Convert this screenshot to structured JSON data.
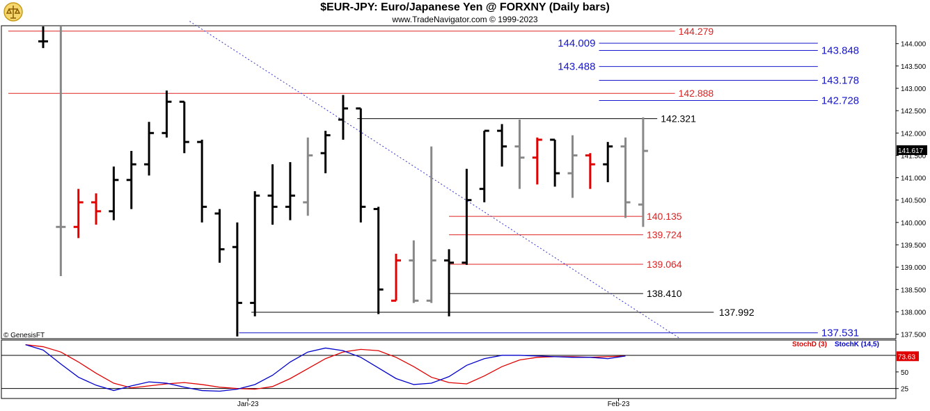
{
  "title": "$EUR-JPY:  Euro/Japanese Yen @ FORXNY  (Daily bars)",
  "subtitle": "www.TradeNavigator.com © 1999-2023",
  "credit": "© GenesisFT",
  "colors": {
    "up": "#000000",
    "down": "#e00000",
    "neutral": "#888888",
    "stochD": "#e00000",
    "stochK": "#0000cc",
    "trend": "#3333cc"
  },
  "chart_data": [
    {
      "type": "bar",
      "subtype": "ohlc",
      "ylim": [
        137.4,
        144.4
      ],
      "yticks": [
        137.5,
        138.0,
        138.5,
        139.0,
        139.5,
        140.0,
        140.5,
        141.0,
        141.5,
        142.0,
        142.5,
        143.0,
        143.5,
        144.0
      ],
      "ytick_labels": [
        "137.500",
        "138.000",
        "138.500",
        "139.000",
        "139.500",
        "140.000",
        "140.500",
        "141.000",
        "141.500",
        "142.000",
        "142.500",
        "143.000",
        "143.500",
        "144.000"
      ],
      "x_labels": [
        {
          "bar": 12,
          "label": "Jan-23"
        },
        {
          "bar": 33,
          "label": "Feb-23"
        }
      ],
      "last_price": "141.617",
      "bars": [
        {
          "o": 144.05,
          "h": 144.5,
          "l": 143.9,
          "c": 144.05,
          "color": "up"
        },
        {
          "o": 139.9,
          "h": 144.5,
          "l": 138.8,
          "c": 139.9,
          "color": "neutral"
        },
        {
          "o": 139.9,
          "h": 140.75,
          "l": 139.65,
          "c": 140.45,
          "color": "down"
        },
        {
          "o": 140.45,
          "h": 140.65,
          "l": 139.95,
          "c": 140.25,
          "color": "down"
        },
        {
          "o": 140.25,
          "h": 141.25,
          "l": 140.05,
          "c": 140.95,
          "color": "up"
        },
        {
          "o": 140.95,
          "h": 141.6,
          "l": 140.3,
          "c": 141.3,
          "color": "up"
        },
        {
          "o": 141.3,
          "h": 142.25,
          "l": 141.05,
          "c": 142.0,
          "color": "up"
        },
        {
          "o": 142.0,
          "h": 142.95,
          "l": 141.9,
          "c": 142.7,
          "color": "up"
        },
        {
          "o": 142.7,
          "h": 142.7,
          "l": 141.55,
          "c": 141.8,
          "color": "up"
        },
        {
          "o": 141.8,
          "h": 141.85,
          "l": 140.0,
          "c": 140.35,
          "color": "up"
        },
        {
          "o": 140.2,
          "h": 140.3,
          "l": 139.1,
          "c": 139.4,
          "color": "up"
        },
        {
          "o": 139.45,
          "h": 140.0,
          "l": 137.45,
          "c": 138.2,
          "color": "up"
        },
        {
          "o": 138.2,
          "h": 140.7,
          "l": 137.9,
          "c": 140.6,
          "color": "up"
        },
        {
          "o": 140.6,
          "h": 141.3,
          "l": 139.95,
          "c": 140.35,
          "color": "up"
        },
        {
          "o": 140.35,
          "h": 141.35,
          "l": 140.05,
          "c": 140.6,
          "color": "up"
        },
        {
          "o": 140.45,
          "h": 141.9,
          "l": 140.15,
          "c": 141.5,
          "color": "neutral"
        },
        {
          "o": 141.55,
          "h": 142.05,
          "l": 141.1,
          "c": 141.95,
          "color": "up"
        },
        {
          "o": 142.3,
          "h": 142.85,
          "l": 141.85,
          "c": 142.55,
          "color": "up"
        },
        {
          "o": 142.55,
          "h": 142.55,
          "l": 140.0,
          "c": 140.35,
          "color": "up"
        },
        {
          "o": 140.3,
          "h": 140.35,
          "l": 137.95,
          "c": 138.5,
          "color": "up"
        },
        {
          "o": 138.25,
          "h": 139.3,
          "l": 138.25,
          "c": 139.15,
          "color": "down"
        },
        {
          "o": 139.15,
          "h": 139.6,
          "l": 138.2,
          "c": 138.25,
          "color": "neutral"
        },
        {
          "o": 138.25,
          "h": 141.7,
          "l": 138.2,
          "c": 139.15,
          "color": "neutral"
        },
        {
          "o": 139.15,
          "h": 139.4,
          "l": 137.9,
          "c": 139.1,
          "color": "up"
        },
        {
          "o": 139.1,
          "h": 141.2,
          "l": 139.05,
          "c": 140.5,
          "color": "up"
        },
        {
          "o": 140.75,
          "h": 142.05,
          "l": 140.45,
          "c": 142.05,
          "color": "up"
        },
        {
          "o": 142.05,
          "h": 142.2,
          "l": 141.25,
          "c": 141.7,
          "color": "up"
        },
        {
          "o": 141.7,
          "h": 142.3,
          "l": 140.75,
          "c": 141.45,
          "color": "neutral"
        },
        {
          "o": 141.45,
          "h": 141.9,
          "l": 140.85,
          "c": 141.85,
          "color": "down"
        },
        {
          "o": 141.85,
          "h": 141.85,
          "l": 140.8,
          "c": 141.1,
          "color": "up"
        },
        {
          "o": 141.1,
          "h": 141.95,
          "l": 140.55,
          "c": 141.5,
          "color": "neutral"
        },
        {
          "o": 141.5,
          "h": 141.55,
          "l": 140.75,
          "c": 141.3,
          "color": "down"
        },
        {
          "o": 141.3,
          "h": 141.8,
          "l": 140.9,
          "c": 141.7,
          "color": "up"
        },
        {
          "o": 141.7,
          "h": 141.9,
          "l": 140.1,
          "c": 140.45,
          "color": "neutral"
        },
        {
          "o": 140.4,
          "h": 142.35,
          "l": 139.9,
          "c": 141.6,
          "color": "neutral"
        }
      ],
      "levels": [
        {
          "value": 144.279,
          "label": "144.279",
          "color": "#dd2222",
          "x0": 0,
          "x1": 35.8,
          "label_at": 36.0,
          "label_size": 14
        },
        {
          "value": 142.888,
          "label": "142.888",
          "color": "#dd2222",
          "x0": 0,
          "x1": 35.8,
          "label_at": 36.0,
          "label_size": 14
        },
        {
          "value": 142.321,
          "label": "142.321",
          "color": "#000000",
          "x0": 17.8,
          "x1": 34.8,
          "label_at": 35.0,
          "label_size": 14
        },
        {
          "value": 140.135,
          "label": "140.135",
          "color": "#dd2222",
          "x0": 23.0,
          "x1": 34.0,
          "label_at": 34.2,
          "label_size": 14
        },
        {
          "value": 139.724,
          "label": "139.724",
          "color": "#dd2222",
          "x0": 23.0,
          "x1": 34.0,
          "label_at": 34.2,
          "label_size": 14
        },
        {
          "value": 139.064,
          "label": "139.064",
          "color": "#dd2222",
          "x0": 23.0,
          "x1": 34.0,
          "label_at": 34.2,
          "label_size": 14
        },
        {
          "value": 138.41,
          "label": "138.410",
          "color": "#000000",
          "x0": 23.0,
          "x1": 34.0,
          "label_at": 34.2,
          "label_size": 14
        },
        {
          "value": 137.992,
          "label": "137.992",
          "color": "#000000",
          "x0": 11.8,
          "x1": 38.0,
          "label_at": 38.3,
          "label_size": 14
        },
        {
          "value": 144.009,
          "label": "144.009",
          "color": "#1515cc",
          "x0": 31.5,
          "x1": 43.9,
          "label_at": 31.3,
          "align": "end",
          "label_size": 15
        },
        {
          "value": 143.848,
          "label": "143.848",
          "color": "#1515cc",
          "x0": 31.5,
          "x1": 43.9,
          "label_at": 44.1,
          "label_size": 15
        },
        {
          "value": 143.488,
          "label": "143.488",
          "color": "#1515cc",
          "x0": 31.5,
          "x1": 43.9,
          "label_at": 31.3,
          "align": "end",
          "label_size": 15
        },
        {
          "value": 143.178,
          "label": "143.178",
          "color": "#1515cc",
          "x0": 31.5,
          "x1": 43.9,
          "label_at": 44.1,
          "label_size": 15
        },
        {
          "value": 142.728,
          "label": "142.728",
          "color": "#1515cc",
          "x0": 31.5,
          "x1": 43.9,
          "label_at": 44.1,
          "label_size": 15
        },
        {
          "value": 137.531,
          "label": "137.531",
          "color": "#1515cc",
          "x0": 11.1,
          "x1": 43.9,
          "label_at": 44.1,
          "label_size": 15
        }
      ],
      "trendline": {
        "from": {
          "bar": 8.3,
          "value": 144.5
        },
        "to": {
          "bar": 36.1,
          "value": 137.4
        },
        "style": "dotted"
      }
    },
    {
      "type": "line",
      "legend": [
        "StochD (3)",
        "StochK (14,5)"
      ],
      "ylim": [
        10,
        98
      ],
      "yticks": [
        25,
        50
      ],
      "ytick_labels": [
        "25",
        "50"
      ],
      "current_value": "73.63",
      "series": [
        {
          "name": "StochD (3)",
          "color": "#e00000",
          "values": [
            91,
            88,
            80,
            65,
            48,
            33,
            26,
            29,
            32,
            34,
            31,
            27,
            25,
            24,
            28,
            40,
            55,
            70,
            80,
            84,
            82,
            72,
            58,
            42,
            34,
            32,
            44,
            58,
            68,
            72,
            73,
            73,
            72,
            73,
            74
          ]
        },
        {
          "name": "StochK (14,5)",
          "color": "#0000cc",
          "values": [
            91,
            83,
            62,
            42,
            30,
            22,
            29,
            35,
            33,
            27,
            22,
            21,
            24,
            31,
            45,
            65,
            80,
            86,
            82,
            72,
            56,
            40,
            31,
            33,
            43,
            60,
            70,
            75,
            75,
            74,
            73,
            72,
            72,
            70,
            74
          ]
        }
      ]
    }
  ]
}
